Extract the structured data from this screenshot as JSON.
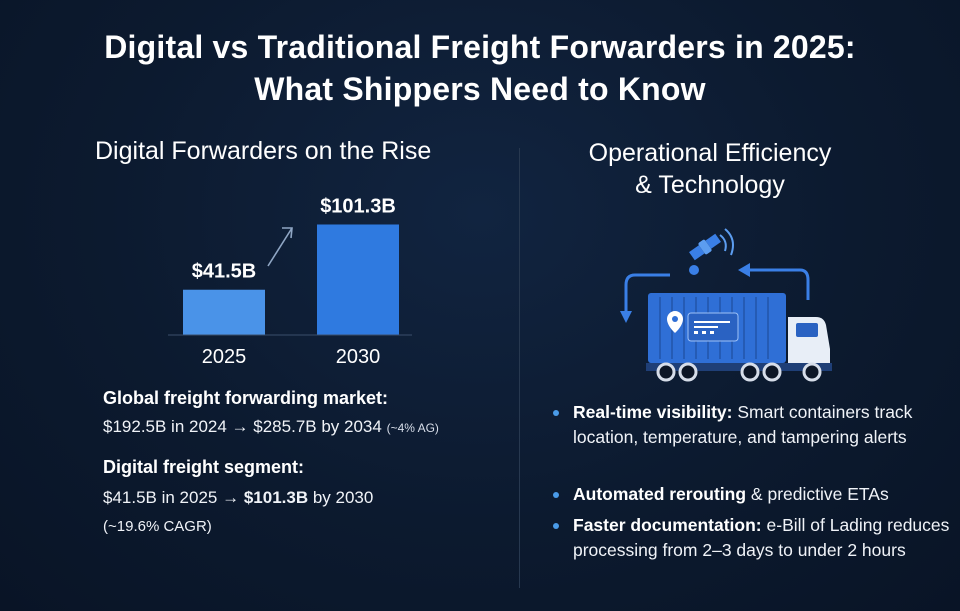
{
  "title": {
    "line1": "Digital vs Traditional Freight Forwarders in 2025:",
    "line2": "What Shippers Need to Know"
  },
  "left": {
    "heading": "Digital Forwarders on the Rise",
    "market": {
      "title": "Global freight forwarding market:",
      "text": "$192.5B in 2024 → $285.7B by 2034",
      "note": "(~4% AG)"
    },
    "digital": {
      "title": "Digital freight segment:",
      "text_a": "$41.5B in 2025 → ",
      "text_b": "$101.3B",
      "text_c": " by 2030",
      "note": "(~19.6% CAGR)"
    }
  },
  "right": {
    "heading_line1": "Operational Efficiency",
    "heading_line2": "& Technology",
    "bullets": [
      {
        "bold": "Real-time visibility:",
        "text": " Smart containers track location, temperature, and tampering alerts"
      },
      {
        "bold": "Automated rerouting",
        "text": " & predictive ETAs"
      },
      {
        "bold": "Faster documentation:",
        "text": " e-Bill of Lading reduces processing from 2–3 days to under 2 hours"
      }
    ]
  },
  "colors": {
    "background": "#0c1a2f",
    "bar_2025": "#4a93e8",
    "bar_2030": "#2f7ae0",
    "accent": "#4a9be8",
    "truck_container": "#2f6fd6"
  },
  "icons": [
    "trend-arrow-icon",
    "satellite-icon",
    "location-pin-icon",
    "truck-icon"
  ],
  "chart_data": {
    "type": "bar",
    "categories": [
      "2025",
      "2030"
    ],
    "values": [
      41.5,
      101.3
    ],
    "data_labels": [
      "$41.5B",
      "$101.3B"
    ],
    "title": "",
    "xlabel": "",
    "ylabel": "",
    "ylim": [
      0,
      110
    ],
    "grid": false
  }
}
